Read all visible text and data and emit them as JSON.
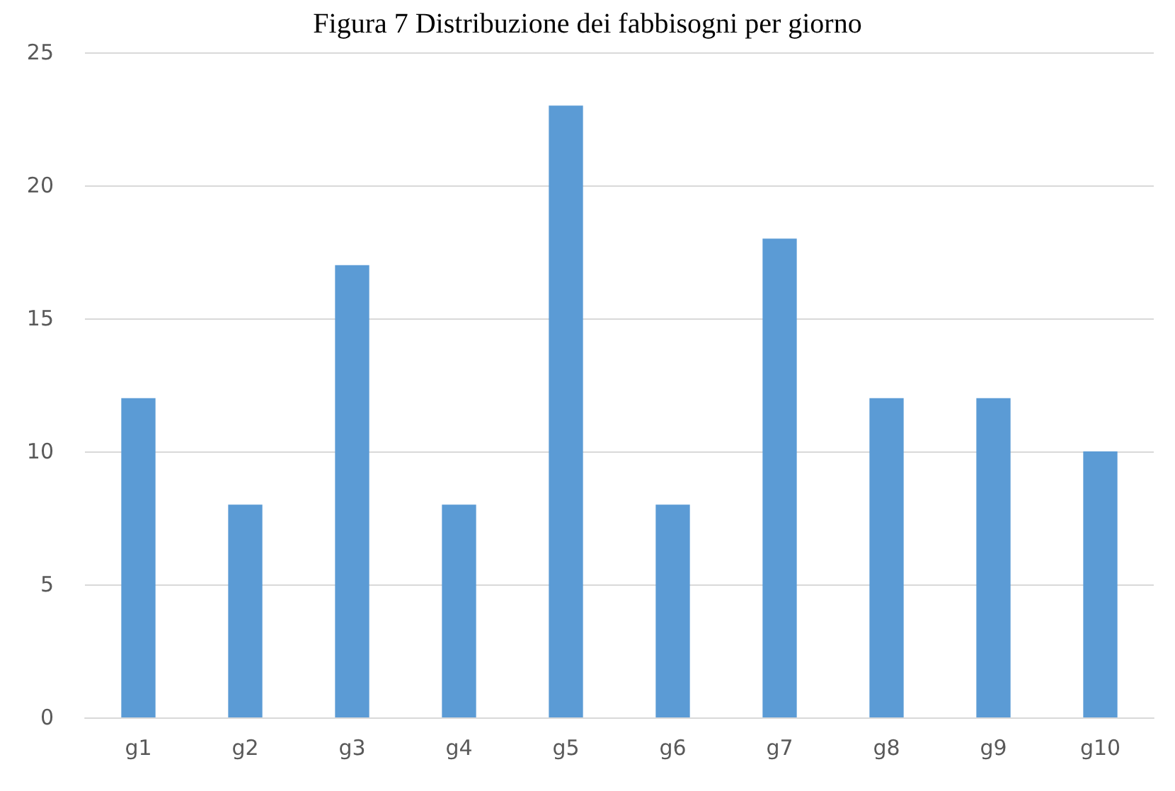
{
  "chart_data": {
    "type": "bar",
    "title": "Figura 7 Distribuzione dei fabbisogni per giorno",
    "categories": [
      "g1",
      "g2",
      "g3",
      "g4",
      "g5",
      "g6",
      "g7",
      "g8",
      "g9",
      "g10"
    ],
    "values": [
      12,
      8,
      17,
      8,
      23,
      8,
      18,
      12,
      12,
      10
    ],
    "color": "#5b9bd5",
    "ylim": [
      0,
      25
    ],
    "yticks": [
      0,
      5,
      10,
      15,
      20,
      25
    ],
    "grid": "y"
  }
}
